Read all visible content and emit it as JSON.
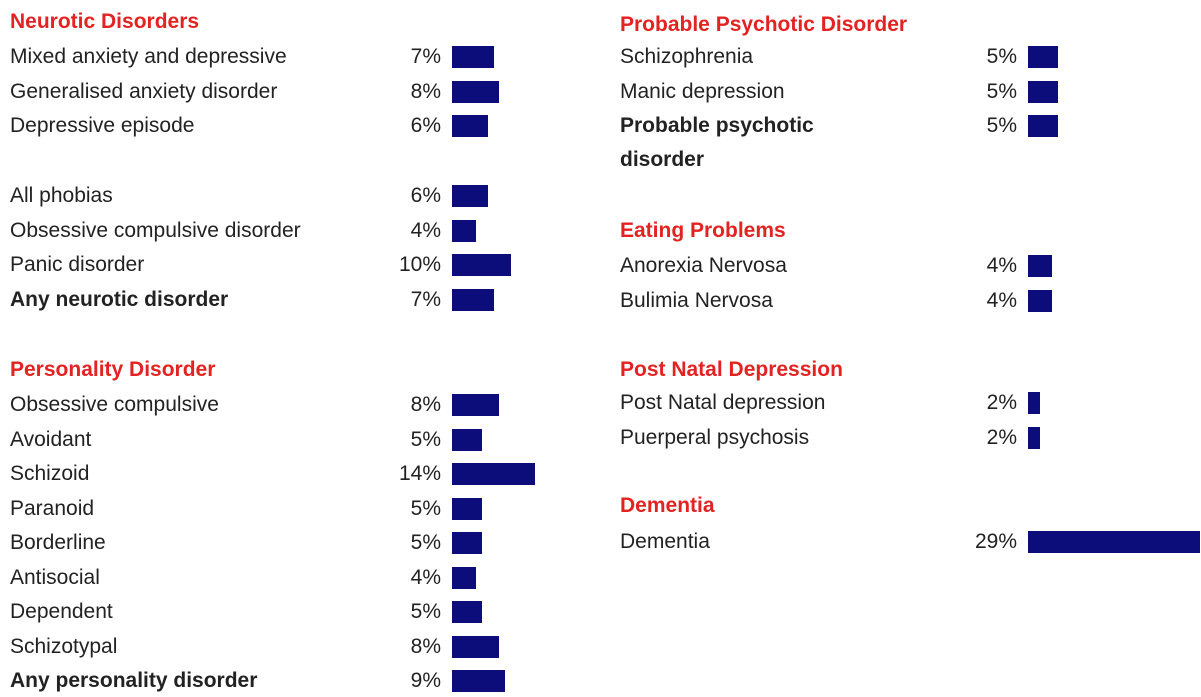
{
  "sections": [
    {
      "title": "Neurotic Disorders",
      "categories": [
        "Mixed anxiety and depressive",
        "Generalised anxiety disorder",
        "Depressive episode"
      ],
      "values": [
        7,
        8,
        6
      ],
      "value_labels": [
        "7%",
        "8%",
        "6%"
      ],
      "bold": [
        false,
        false,
        false
      ]
    },
    {
      "categories": [
        "All phobias",
        "Obsessive compulsive disorder",
        "Panic disorder",
        "Any neurotic disorder"
      ],
      "values": [
        6,
        4,
        10,
        7
      ],
      "value_labels": [
        "6%",
        "4%",
        "10%",
        "7%"
      ],
      "bold": [
        false,
        false,
        false,
        true
      ]
    },
    {
      "title": "Personality Disorder",
      "categories": [
        "Obsessive compulsive",
        "Avoidant",
        "Schizoid",
        "Paranoid",
        "Borderline",
        "Antisocial",
        "Dependent",
        "Schizotypal",
        "Any personality disorder"
      ],
      "values": [
        8,
        5,
        14,
        5,
        5,
        4,
        5,
        8,
        9
      ],
      "value_labels": [
        "8%",
        "5%",
        "14%",
        "5%",
        "5%",
        "4%",
        "5%",
        "8%",
        "9%"
      ],
      "bold": [
        false,
        false,
        false,
        false,
        false,
        false,
        false,
        false,
        true
      ]
    },
    {
      "title": "Probable Psychotic Disorder",
      "categories": [
        "Schizophrenia",
        "Manic depression",
        "Probable psychotic disorder"
      ],
      "values": [
        5,
        5,
        5
      ],
      "value_labels": [
        "5%",
        "5%",
        "5%"
      ],
      "bold": [
        false,
        false,
        true
      ]
    },
    {
      "title": "Eating Problems",
      "categories": [
        "Anorexia Nervosa",
        "Bulimia Nervosa"
      ],
      "values": [
        4,
        4
      ],
      "value_labels": [
        "4%",
        "4%"
      ],
      "bold": [
        false,
        false
      ]
    },
    {
      "title": "Post Natal Depression",
      "categories": [
        "Post Natal depression",
        "Puerperal psychosis"
      ],
      "values": [
        2,
        2
      ],
      "value_labels": [
        "2%",
        "2%"
      ],
      "bold": [
        false,
        false
      ]
    },
    {
      "title": "Dementia",
      "categories": [
        "Dementia"
      ],
      "values": [
        29
      ],
      "value_labels": [
        "29%"
      ],
      "bold": [
        false
      ]
    }
  ],
  "bar_color": "#0c0c7a",
  "title_color": "#e32222"
}
